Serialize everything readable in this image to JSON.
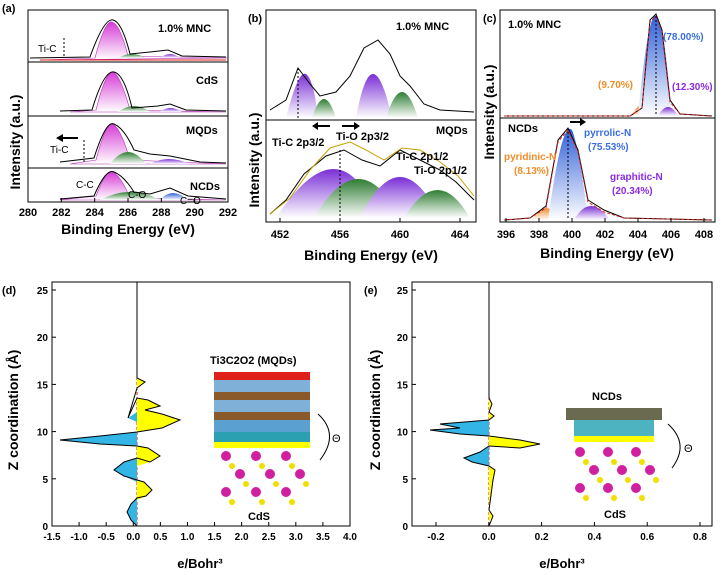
{
  "figure": {
    "a": {
      "panel_letter": "(a)",
      "ylabel": "Intensity (a.u.)",
      "xlabel": "Binding Energy (eV)",
      "x_ticks": [
        "280",
        "282",
        "284",
        "286",
        "288",
        "290",
        "292"
      ],
      "stack_labels": [
        "1.0% MNC",
        "CdS",
        "MQDs",
        "NCDs"
      ],
      "annotations": {
        "tic_top": "Ti-C",
        "tic_mid": "Ti-C",
        "cc": "C-C",
        "co": "C-O",
        "ceo": "C=O"
      }
    },
    "b": {
      "panel_letter": "(b)",
      "ylabel": "Intensity (a.u.)",
      "xlabel": "Binding Energy (eV)",
      "x_ticks": [
        "452",
        "456",
        "460",
        "464"
      ],
      "stack_labels": [
        "1.0% MNC",
        "MQDs"
      ],
      "peak_labels": {
        "tic32": "Ti-C 2p3/2",
        "tio32": "Ti-O 2p3/2",
        "tic12": "Ti-C 2p1/2",
        "tio12": "Ti-O 2p1/2"
      }
    },
    "c": {
      "panel_letter": "(c)",
      "ylabel": "Intensity (a.u.)",
      "xlabel": "Binding Energy (eV)",
      "x_ticks": [
        "396",
        "398",
        "400",
        "402",
        "404",
        "406",
        "408"
      ],
      "stack_labels": [
        "1.0% MNC",
        "NCDs"
      ],
      "top_percents": [
        "(78.00%)",
        "(9.70%)",
        "(12.30%)"
      ],
      "species": {
        "pyridinic": "pyridinic-N",
        "pyrrolic": "pyrrolic-N",
        "graphitic": "graphitic-N"
      },
      "bottom_percents": {
        "pyridinic": "(8.13%)",
        "pyrrolic": "(75.53%)",
        "graphitic": "(20.34%)"
      }
    },
    "d": {
      "panel_letter": "(d)",
      "ylabel": "Z coordination (Å)",
      "xlabel": "e/Bohr³",
      "x_ticks": [
        "-1.5",
        "-1.0",
        "-0.5",
        "0.0",
        "0.5",
        "1.0",
        "1.5",
        "2.0",
        "2.5",
        "3.0",
        "3.5",
        "4.0"
      ],
      "y_ticks": [
        "0",
        "5",
        "10",
        "15",
        "20",
        "25"
      ],
      "structure_top": "Ti3C2O2 (MQDs)",
      "structure_bottom": "CdS",
      "electron_symbol": "Θ"
    },
    "e": {
      "panel_letter": "(e)",
      "ylabel": "Z coordination (Å)",
      "xlabel": "e/Bohr³",
      "x_ticks": [
        "-0.2",
        "0.0",
        "0.2",
        "0.4",
        "0.6",
        "0.8"
      ],
      "y_ticks": [
        "0",
        "5",
        "10",
        "15",
        "20",
        "25"
      ],
      "structure_top": "NCDs",
      "structure_bottom": "CdS",
      "electron_symbol": "Θ"
    },
    "colors": {
      "pink": "#e040d8",
      "green": "#2e7d32",
      "purple": "#8a2be2",
      "blue": "#3a6fe0",
      "orange": "#f28c28",
      "yellow": "#ffff00",
      "cyan": "#33b5e5",
      "red": "#e0201b"
    }
  }
}
